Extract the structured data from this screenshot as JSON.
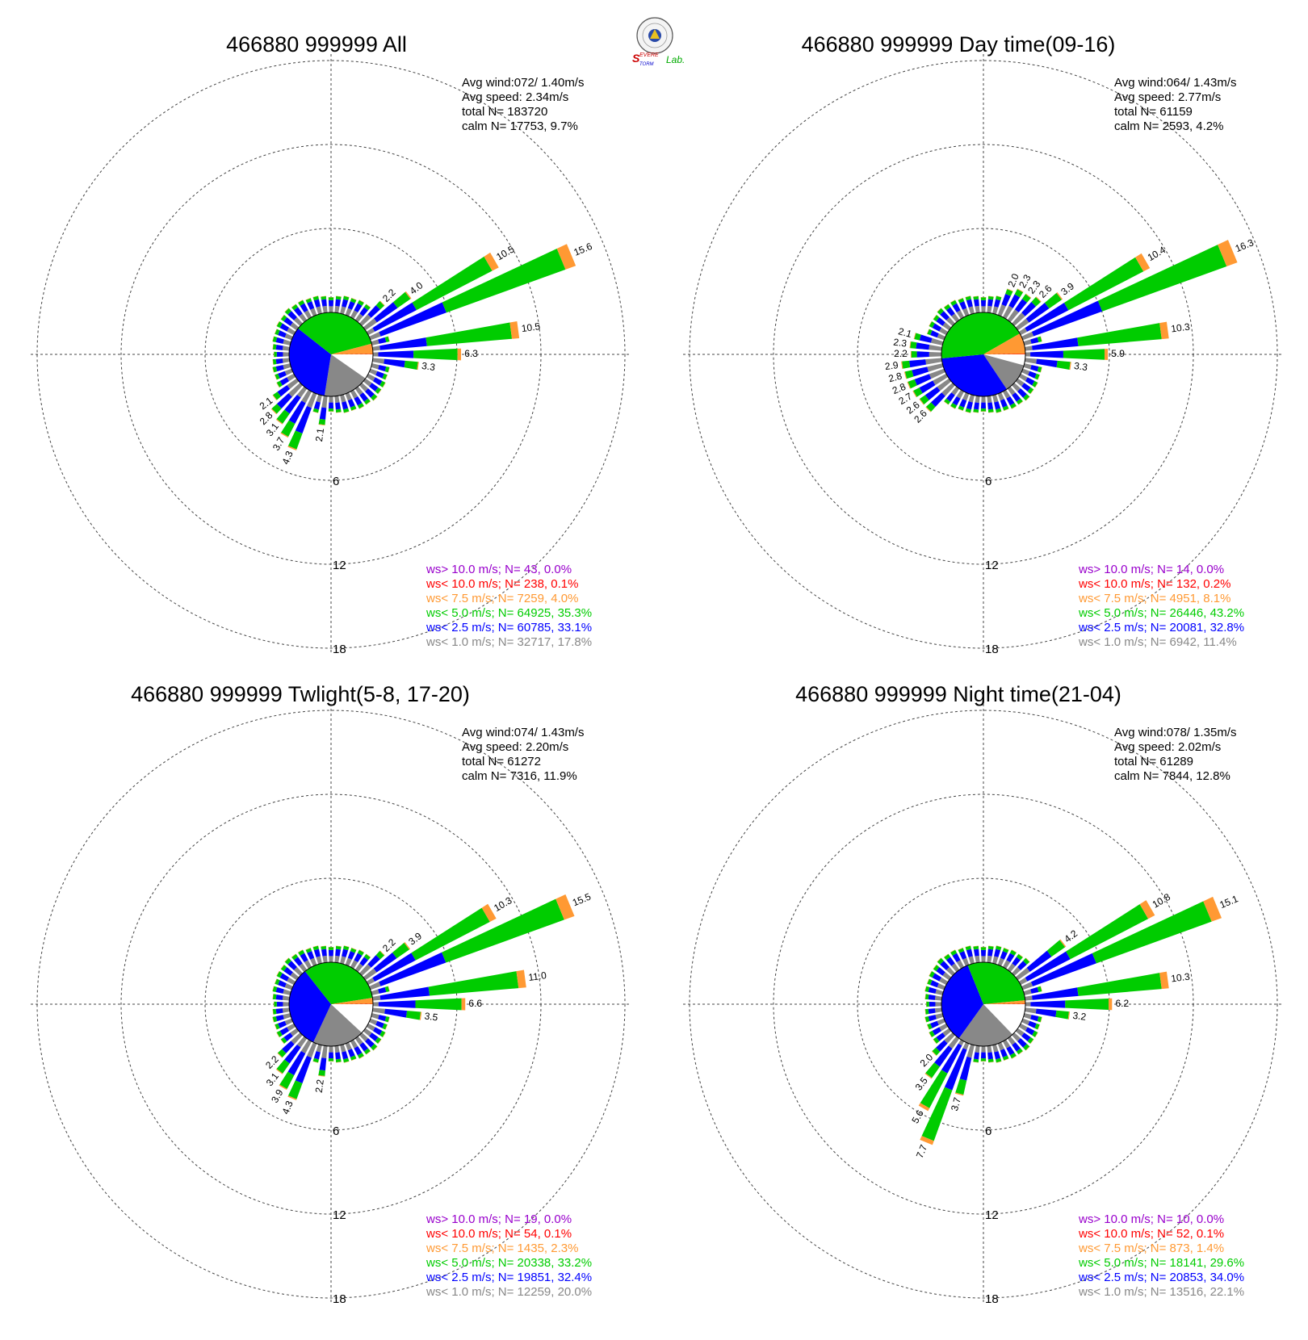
{
  "logo": {
    "text_line1": "EVERE",
    "text_line2": "TORM",
    "text_line3": "Lab."
  },
  "colors": {
    "above10": "#9900cc",
    "lt10": "#ff0000",
    "lt75": "#ff9933",
    "lt5": "#00cc00",
    "lt25": "#0000ff",
    "lt1": "#888888",
    "calm": "#ffffff"
  },
  "chart_data": [
    {
      "type": "windrose",
      "title": "466880 999999 All",
      "stats": [
        "Avg wind:072/ 1.40m/s",
        "Avg speed: 2.34m/s",
        "total N=      183720",
        "calm N=  17753,   9.7%"
      ],
      "ring_labels": [
        "6",
        "12",
        "18"
      ],
      "legend": [
        {
          "text": "ws> 10.0 m/s; N=    43,  0.0%",
          "color": "#9900cc"
        },
        {
          "text": "ws< 10.0 m/s; N=   238,  0.1%",
          "color": "#ff0000"
        },
        {
          "text": "ws<  7.5 m/s; N=  7259,  4.0%",
          "color": "#ff9933"
        },
        {
          "text": "ws<  5.0 m/s; N= 64925, 35.3%",
          "color": "#00cc00"
        },
        {
          "text": "ws<  2.5 m/s; N= 60785, 33.1%",
          "color": "#0000ff"
        },
        {
          "text": "ws<  1.0 m/s; N= 32717, 17.8%",
          "color": "#888888"
        }
      ],
      "pie": [
        9.7,
        17.8,
        33.1,
        35.3,
        4.0,
        0.1
      ],
      "petals": [
        {
          "dir": 60,
          "total": 10.5,
          "label": "10.5"
        },
        {
          "dir": 67.5,
          "total": 15.6,
          "label": "15.6"
        },
        {
          "dir": 52.5,
          "total": 4.0,
          "label": "4.0"
        },
        {
          "dir": 45,
          "total": 2.2,
          "label": "2.2"
        },
        {
          "dir": 82.5,
          "total": 10.5,
          "label": "10.5"
        },
        {
          "dir": 90,
          "total": 6.3,
          "label": "6.3"
        },
        {
          "dir": 97.5,
          "total": 3.3,
          "label": "3.3"
        },
        {
          "dir": 187.5,
          "total": 2.1,
          "label": "2.1"
        },
        {
          "dir": 202.5,
          "total": 4.3,
          "label": "4.3"
        },
        {
          "dir": 210,
          "total": 3.7,
          "label": "3.7"
        },
        {
          "dir": 217.5,
          "total": 3.1,
          "label": "3.1"
        },
        {
          "dir": 225,
          "total": 2.8,
          "label": "2.8"
        },
        {
          "dir": 232.5,
          "total": 2.1,
          "label": "2.1"
        }
      ]
    },
    {
      "type": "windrose",
      "title": "466880 999999 Day time(09-16)",
      "stats": [
        "Avg wind:064/ 1.43m/s",
        "Avg speed: 2.77m/s",
        "total N=       61159",
        "calm N=   2593,   4.2%"
      ],
      "ring_labels": [
        "6",
        "12",
        "18"
      ],
      "legend": [
        {
          "text": "ws> 10.0 m/s; N=    14,  0.0%",
          "color": "#9900cc"
        },
        {
          "text": "ws< 10.0 m/s; N=   132,  0.2%",
          "color": "#ff0000"
        },
        {
          "text": "ws<  7.5 m/s; N=  4951,  8.1%",
          "color": "#ff9933"
        },
        {
          "text": "ws<  5.0 m/s; N= 26446, 43.2%",
          "color": "#00cc00"
        },
        {
          "text": "ws<  2.5 m/s; N= 20081, 32.8%",
          "color": "#0000ff"
        },
        {
          "text": "ws<  1.0 m/s; N=  6942, 11.4%",
          "color": "#888888"
        }
      ],
      "pie": [
        4.2,
        11.4,
        32.8,
        43.2,
        8.1,
        0.2
      ],
      "petals": [
        {
          "dir": 60,
          "total": 10.4,
          "label": "10.4"
        },
        {
          "dir": 67.5,
          "total": 16.3,
          "label": "16.3"
        },
        {
          "dir": 82.5,
          "total": 10.3,
          "label": "10.3"
        },
        {
          "dir": 90,
          "total": 5.9,
          "label": "5.9"
        },
        {
          "dir": 97.5,
          "total": 3.3,
          "label": "3.3"
        },
        {
          "dir": 52.5,
          "total": 3.9,
          "label": "3.9"
        },
        {
          "dir": 45,
          "total": 2.6,
          "label": "2.6"
        },
        {
          "dir": 37.5,
          "total": 2.3,
          "label": "2.3"
        },
        {
          "dir": 30,
          "total": 2.3,
          "label": "2.3"
        },
        {
          "dir": 22.5,
          "total": 2.0,
          "label": "2.0"
        },
        {
          "dir": 285,
          "total": 2.1,
          "label": "2.1"
        },
        {
          "dir": 277.5,
          "total": 2.3,
          "label": "2.3"
        },
        {
          "dir": 270,
          "total": 2.2,
          "label": "2.2"
        },
        {
          "dir": 262.5,
          "total": 2.9,
          "label": "2.9"
        },
        {
          "dir": 255,
          "total": 2.8,
          "label": "2.8"
        },
        {
          "dir": 247.5,
          "total": 2.8,
          "label": "2.8"
        },
        {
          "dir": 240,
          "total": 2.7,
          "label": "2.7"
        },
        {
          "dir": 232.5,
          "total": 2.6,
          "label": "2.6"
        },
        {
          "dir": 225,
          "total": 2.6,
          "label": "2.6"
        }
      ]
    },
    {
      "type": "windrose",
      "title": "466880 999999 Twlight(5-8, 17-20)",
      "stats": [
        "Avg wind:074/ 1.43m/s",
        "Avg speed: 2.20m/s",
        "total N=       61272",
        "calm N=   7316,  11.9%"
      ],
      "ring_labels": [
        "6",
        "12",
        "18"
      ],
      "legend": [
        {
          "text": "ws> 10.0 m/s; N=    19,  0.0%",
          "color": "#9900cc"
        },
        {
          "text": "ws< 10.0 m/s; N=    54,  0.1%",
          "color": "#ff0000"
        },
        {
          "text": "ws<  7.5 m/s; N=  1435,  2.3%",
          "color": "#ff9933"
        },
        {
          "text": "ws<  5.0 m/s; N= 20338, 33.2%",
          "color": "#00cc00"
        },
        {
          "text": "ws<  2.5 m/s; N= 19851, 32.4%",
          "color": "#0000ff"
        },
        {
          "text": "ws<  1.0 m/s; N= 12259, 20.0%",
          "color": "#888888"
        }
      ],
      "pie": [
        11.9,
        20.0,
        32.4,
        33.2,
        2.3,
        0.1
      ],
      "petals": [
        {
          "dir": 60,
          "total": 10.3,
          "label": "10.3"
        },
        {
          "dir": 67.5,
          "total": 15.5,
          "label": "15.5"
        },
        {
          "dir": 52.5,
          "total": 3.9,
          "label": "3.9"
        },
        {
          "dir": 45,
          "total": 2.2,
          "label": "2.2"
        },
        {
          "dir": 82.5,
          "total": 11.0,
          "label": "11.0"
        },
        {
          "dir": 90,
          "total": 6.6,
          "label": "6.6"
        },
        {
          "dir": 97.5,
          "total": 3.5,
          "label": "3.5"
        },
        {
          "dir": 187.5,
          "total": 2.2,
          "label": "2.2"
        },
        {
          "dir": 202.5,
          "total": 4.3,
          "label": "4.3"
        },
        {
          "dir": 210,
          "total": 3.9,
          "label": "3.9"
        },
        {
          "dir": 217.5,
          "total": 3.1,
          "label": "3.1"
        },
        {
          "dir": 225,
          "total": 2.2,
          "label": "2.2"
        }
      ]
    },
    {
      "type": "windrose",
      "title": "466880 999999 Night time(21-04)",
      "stats": [
        "Avg wind:078/ 1.35m/s",
        "Avg speed: 2.02m/s",
        "total N=       61289",
        "calm N=   7844,  12.8%"
      ],
      "ring_labels": [
        "6",
        "12",
        "18"
      ],
      "legend": [
        {
          "text": "ws> 10.0 m/s; N=    10,  0.0%",
          "color": "#9900cc"
        },
        {
          "text": "ws< 10.0 m/s; N=    52,  0.1%",
          "color": "#ff0000"
        },
        {
          "text": "ws<  7.5 m/s; N=   873,  1.4%",
          "color": "#ff9933"
        },
        {
          "text": "ws<  5.0 m/s; N= 18141, 29.6%",
          "color": "#00cc00"
        },
        {
          "text": "ws<  2.5 m/s; N= 20853, 34.0%",
          "color": "#0000ff"
        },
        {
          "text": "ws<  1.0 m/s; N= 13516, 22.1%",
          "color": "#888888"
        }
      ],
      "pie": [
        12.8,
        22.1,
        34.0,
        29.6,
        1.4,
        0.1
      ],
      "petals": [
        {
          "dir": 60,
          "total": 10.8,
          "label": "10.8"
        },
        {
          "dir": 67.5,
          "total": 15.1,
          "label": "15.1"
        },
        {
          "dir": 52.5,
          "total": 4.2,
          "label": "4.2"
        },
        {
          "dir": 82.5,
          "total": 10.3,
          "label": "10.3"
        },
        {
          "dir": 90,
          "total": 6.2,
          "label": "6.2"
        },
        {
          "dir": 97.5,
          "total": 3.2,
          "label": "3.2"
        },
        {
          "dir": 195,
          "total": 3.7,
          "label": "3.7"
        },
        {
          "dir": 202.5,
          "total": 7.7,
          "label": "7.7"
        },
        {
          "dir": 210,
          "total": 5.6,
          "label": "5.6"
        },
        {
          "dir": 217.5,
          "total": 3.5,
          "label": "3.5"
        },
        {
          "dir": 225,
          "total": 2.0,
          "label": "2.0"
        }
      ]
    }
  ]
}
